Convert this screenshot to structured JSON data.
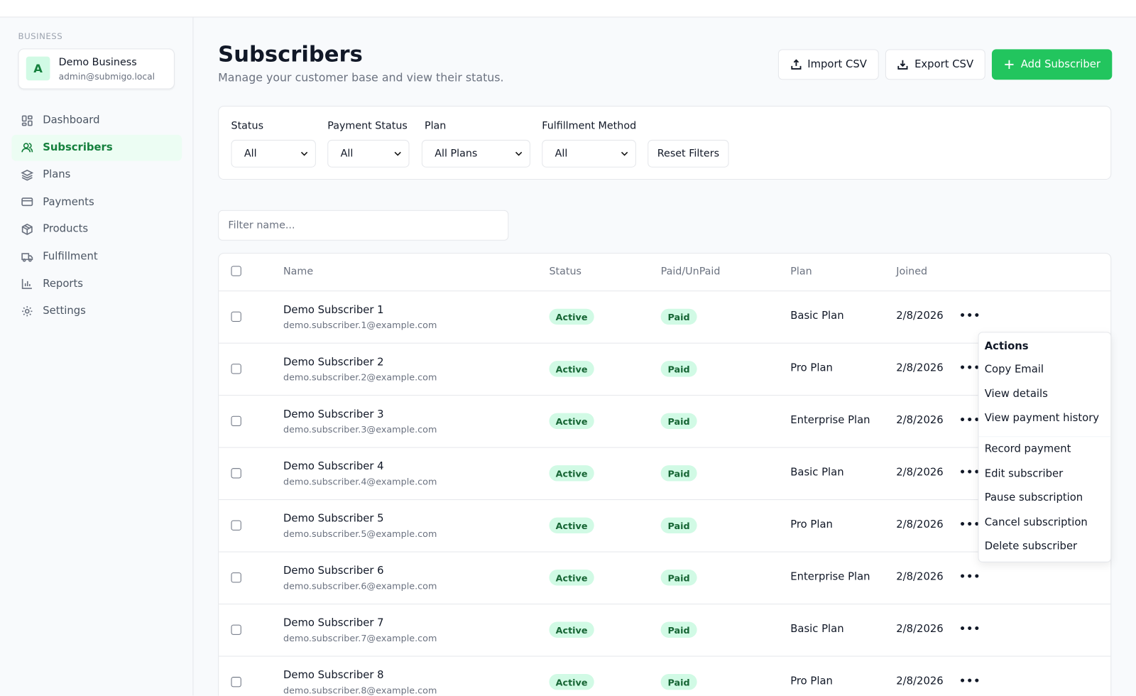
{
  "sidebar": {
    "section_label": "BUSINESS",
    "business": {
      "avatar": "A",
      "name": "Demo Business",
      "email": "admin@submigo.local"
    },
    "items": [
      {
        "label": "Dashboard",
        "icon": "dashboard-icon"
      },
      {
        "label": "Subscribers",
        "icon": "users-icon",
        "active": true
      },
      {
        "label": "Plans",
        "icon": "layers-icon"
      },
      {
        "label": "Payments",
        "icon": "credit-card-icon"
      },
      {
        "label": "Products",
        "icon": "package-icon"
      },
      {
        "label": "Fulfillment",
        "icon": "truck-icon"
      },
      {
        "label": "Reports",
        "icon": "bar-chart-icon"
      },
      {
        "label": "Settings",
        "icon": "gear-icon"
      }
    ]
  },
  "header": {
    "title": "Subscribers",
    "subtitle": "Manage your customer base and view their status.",
    "import_label": "Import CSV",
    "export_label": "Export CSV",
    "add_label": "Add Subscriber"
  },
  "filters": {
    "status": {
      "label": "Status",
      "value": "All"
    },
    "payment_status": {
      "label": "Payment Status",
      "value": "All"
    },
    "plan": {
      "label": "Plan",
      "value": "All Plans"
    },
    "fulfillment": {
      "label": "Fulfillment Method",
      "value": "All"
    },
    "reset_label": "Reset Filters"
  },
  "search": {
    "placeholder": "Filter name..."
  },
  "table": {
    "columns": [
      "Name",
      "Status",
      "Paid/UnPaid",
      "Plan",
      "Joined"
    ],
    "rows": [
      {
        "name": "Demo Subscriber 1",
        "email": "demo.subscriber.1@example.com",
        "status": "Active",
        "paid": "Paid",
        "plan": "Basic Plan",
        "joined": "2/8/2026"
      },
      {
        "name": "Demo Subscriber 2",
        "email": "demo.subscriber.2@example.com",
        "status": "Active",
        "paid": "Paid",
        "plan": "Pro Plan",
        "joined": "2/8/2026"
      },
      {
        "name": "Demo Subscriber 3",
        "email": "demo.subscriber.3@example.com",
        "status": "Active",
        "paid": "Paid",
        "plan": "Enterprise Plan",
        "joined": "2/8/2026"
      },
      {
        "name": "Demo Subscriber 4",
        "email": "demo.subscriber.4@example.com",
        "status": "Active",
        "paid": "Paid",
        "plan": "Basic Plan",
        "joined": "2/8/2026"
      },
      {
        "name": "Demo Subscriber 5",
        "email": "demo.subscriber.5@example.com",
        "status": "Active",
        "paid": "Paid",
        "plan": "Pro Plan",
        "joined": "2/8/2026"
      },
      {
        "name": "Demo Subscriber 6",
        "email": "demo.subscriber.6@example.com",
        "status": "Active",
        "paid": "Paid",
        "plan": "Enterprise Plan",
        "joined": "2/8/2026"
      },
      {
        "name": "Demo Subscriber 7",
        "email": "demo.subscriber.7@example.com",
        "status": "Active",
        "paid": "Paid",
        "plan": "Basic Plan",
        "joined": "2/8/2026"
      },
      {
        "name": "Demo Subscriber 8",
        "email": "demo.subscriber.8@example.com",
        "status": "Active",
        "paid": "Paid",
        "plan": "Pro Plan",
        "joined": "2/8/2026"
      }
    ]
  },
  "actions_menu": {
    "heading": "Actions",
    "items": [
      "Copy Email",
      "View details",
      "View payment history",
      "Record payment",
      "Edit subscriber",
      "Pause subscription",
      "Cancel subscription",
      "Delete subscriber"
    ]
  },
  "colors": {
    "accent": "#22c55e",
    "active_text": "#15803d",
    "badge_bg": "#d1fae5"
  }
}
